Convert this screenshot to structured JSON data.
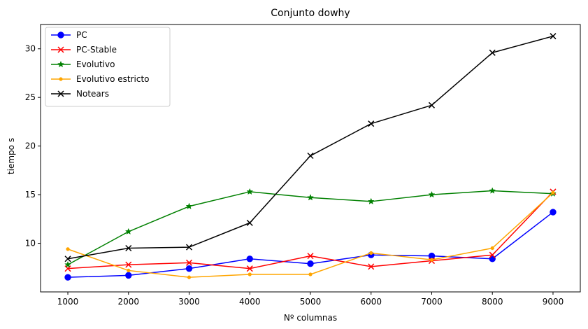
{
  "chart_data": {
    "type": "line",
    "title": "Conjunto dowhy",
    "xlabel": "Nº columnas",
    "ylabel": "tiempo s",
    "x": [
      1000,
      2000,
      3000,
      4000,
      5000,
      6000,
      7000,
      8000,
      9000
    ],
    "xticks": [
      "1000",
      "2000",
      "3000",
      "4000",
      "5000",
      "6000",
      "7000",
      "8000",
      "9000"
    ],
    "yticks": [
      "10",
      "15",
      "20",
      "25",
      "30"
    ],
    "xlim": [
      550,
      9450
    ],
    "ylim": [
      5.0,
      32.5
    ],
    "grid": false,
    "legend_position": "top-left",
    "series": [
      {
        "name": "PC",
        "color": "#0000ff",
        "marker": "circle",
        "values": [
          6.5,
          6.7,
          7.4,
          8.4,
          7.9,
          8.8,
          8.7,
          8.4,
          13.2
        ]
      },
      {
        "name": "PC-Stable",
        "color": "#ff0000",
        "marker": "x",
        "values": [
          7.4,
          7.8,
          8.0,
          7.4,
          8.7,
          7.6,
          8.2,
          8.8,
          15.3
        ]
      },
      {
        "name": "Evolutivo",
        "color": "#008000",
        "marker": "star",
        "values": [
          7.8,
          11.2,
          13.8,
          15.3,
          14.7,
          14.3,
          15.0,
          15.4,
          15.1
        ]
      },
      {
        "name": "Evolutivo estricto",
        "color": "#ffa500",
        "marker": "point",
        "values": [
          9.4,
          7.2,
          6.5,
          6.8,
          6.8,
          9.0,
          8.3,
          9.5,
          15.2
        ]
      },
      {
        "name": "Notears",
        "color": "#000000",
        "marker": "x",
        "values": [
          8.4,
          9.5,
          9.6,
          12.1,
          19.0,
          22.3,
          24.2,
          29.6,
          31.3
        ]
      }
    ]
  }
}
